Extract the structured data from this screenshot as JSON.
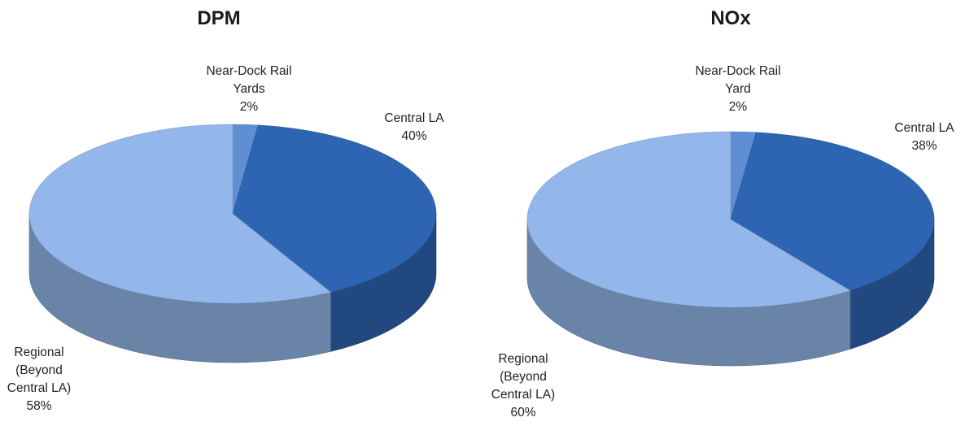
{
  "chart_data": [
    {
      "type": "pie",
      "title": "DPM",
      "slices": [
        {
          "label": [
            "Near-Dock Rail",
            "Yards"
          ],
          "pct_label": "2%",
          "value": 2,
          "color": "#5F8FD3"
        },
        {
          "label": [
            "Central LA"
          ],
          "pct_label": "40%",
          "value": 40,
          "color": "#2E65B2"
        },
        {
          "label": [
            "Regional",
            "(Beyond",
            "Central LA)"
          ],
          "pct_label": "58%",
          "value": 58,
          "color": "#93B7EA"
        }
      ]
    },
    {
      "type": "pie",
      "title": "NOx",
      "slices": [
        {
          "label": [
            "Near-Dock Rail",
            "Yard"
          ],
          "pct_label": "2%",
          "value": 2,
          "color": "#5F8FD3"
        },
        {
          "label": [
            "Central LA"
          ],
          "pct_label": "38%",
          "value": 38,
          "color": "#2E65B2"
        },
        {
          "label": [
            "Regional",
            "(Beyond",
            "Central LA)"
          ],
          "pct_label": "60%",
          "value": 60,
          "color": "#93B7EA"
        }
      ]
    }
  ]
}
